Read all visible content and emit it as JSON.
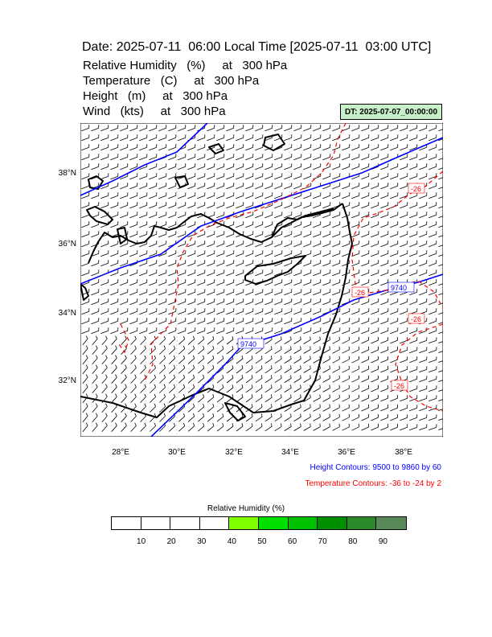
{
  "header": {
    "title": "Date: 2025-07-11  06:00 Local Time [2025-07-11  03:00 UTC]",
    "fields": [
      "Relative Humidity   (%)     at   300 hPa",
      "Temperature   (C)     at   300 hPa",
      "Height   (m)     at   300 hPa",
      "Wind   (kts)     at   300 hPa"
    ],
    "dt_label": "DT: 2025-07-07_00:00:00"
  },
  "map": {
    "lat_labels": [
      "38°N",
      "36°N",
      "34°N",
      "32°N"
    ],
    "lon_labels": [
      "28°E",
      "30°E",
      "32°E",
      "34°E",
      "36°E",
      "38°E"
    ],
    "height_contour_labels": [
      "9740",
      "9740"
    ],
    "temperature_contour_labels": [
      "-26",
      "-26",
      "-26",
      "-26"
    ],
    "colors": {
      "height": "#0000ff",
      "temperature": "#ff0000",
      "coast": "#000000"
    }
  },
  "notes": {
    "height_contours": "Height Contours: 9500 to 9860 by 60",
    "temperature_contours": "Temperature Contours: -36 to -24 by 2"
  },
  "colorbar": {
    "title": "Relative Humidity  (%)",
    "labels": [
      "10",
      "20",
      "30",
      "40",
      "50",
      "60",
      "70",
      "80",
      "90"
    ],
    "colors": [
      "#ffffff",
      "#ffffff",
      "#ffffff",
      "#ffffff",
      "#7fff00",
      "#00e000",
      "#00c000",
      "#008f00",
      "#2a8a2a",
      "#5a8a5a"
    ]
  }
}
